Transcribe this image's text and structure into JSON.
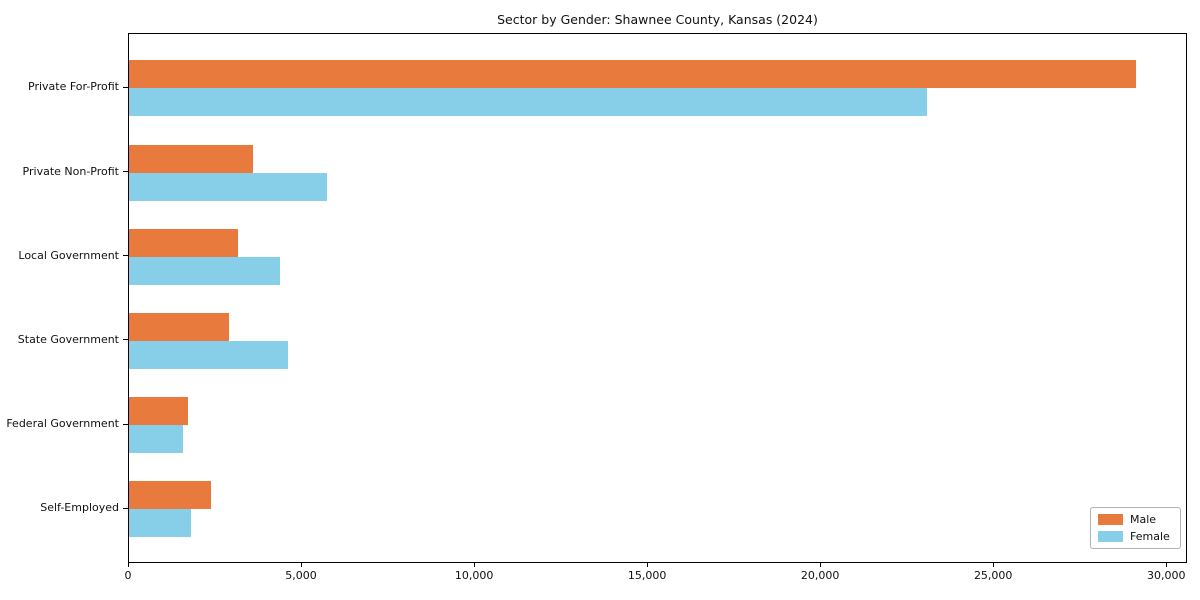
{
  "title": "Sector by Gender: Shawnee County, Kansas (2024)",
  "chart_data": {
    "type": "bar",
    "orientation": "horizontal",
    "title": "Sector by Gender: Shawnee County, Kansas (2024)",
    "categories": [
      "Private For-Profit",
      "Private Non-Profit",
      "Local Government",
      "State Government",
      "Federal Government",
      "Self-Employed"
    ],
    "series": [
      {
        "name": "Male",
        "color": "#E87A3E",
        "values": [
          29100,
          3590,
          3150,
          2900,
          1700,
          2380
        ]
      },
      {
        "name": "Female",
        "color": "#87CEE8",
        "values": [
          23050,
          5730,
          4360,
          4580,
          1570,
          1780
        ]
      }
    ],
    "xlabel": "",
    "ylabel": "",
    "xlim": [
      0,
      30600
    ],
    "x_ticks": [
      0,
      5000,
      10000,
      15000,
      20000,
      25000,
      30000
    ],
    "x_tick_labels": [
      "0",
      "5,000",
      "10,000",
      "15,000",
      "20,000",
      "25,000",
      "30,000"
    ],
    "grid": false,
    "legend": {
      "position": "lower-right",
      "entries": [
        {
          "label": "Male",
          "color": "#E87A3E"
        },
        {
          "label": "Female",
          "color": "#87CEE8"
        }
      ]
    }
  }
}
